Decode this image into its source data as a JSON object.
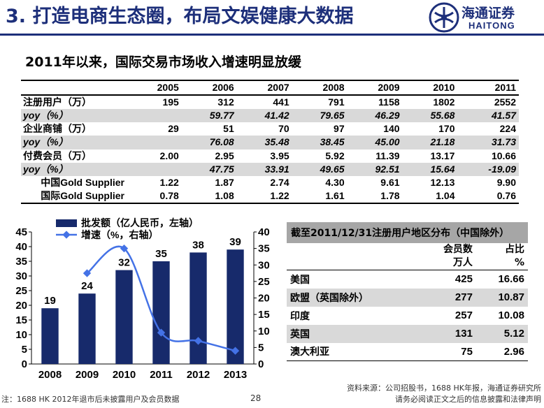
{
  "header": {
    "title": "3. 打造电商生态圈，布局文娱健康大数据",
    "logo_zh": "海通证券",
    "logo_en": "HAITONG",
    "colors": {
      "brand": "#1d2f7a",
      "bar": "#172a6b",
      "line": "#4472e6"
    }
  },
  "subtitle": "2011年以来，国际交易市场收入增速明显放缓",
  "table": {
    "years": [
      "2005",
      "2006",
      "2007",
      "2008",
      "2009",
      "2010",
      "2011"
    ],
    "rows": [
      {
        "label": "注册用户（万）",
        "values": [
          "195",
          "312",
          "441",
          "791",
          "1158",
          "1802",
          "2552"
        ],
        "kind": "main"
      },
      {
        "label": "yoy（%）",
        "values": [
          "",
          "59.77",
          "41.42",
          "79.65",
          "46.29",
          "55.68",
          "41.57"
        ],
        "kind": "yoy"
      },
      {
        "label": "企业商铺（万）",
        "values": [
          "29",
          "51",
          "70",
          "97",
          "140",
          "170",
          "224"
        ],
        "kind": "main"
      },
      {
        "label": "yoy（%）",
        "values": [
          "",
          "76.08",
          "35.48",
          "38.45",
          "45.00",
          "21.18",
          "31.73"
        ],
        "kind": "yoy"
      },
      {
        "label": "付费会员（万）",
        "values": [
          "2.00",
          "2.95",
          "3.95",
          "5.92",
          "11.39",
          "13.17",
          "10.66"
        ],
        "kind": "main"
      },
      {
        "label": "yoy（%）",
        "values": [
          "",
          "47.75",
          "33.91",
          "49.65",
          "92.51",
          "15.64",
          "-19.09"
        ],
        "kind": "yoy"
      },
      {
        "label": "中国Gold Supplier",
        "values": [
          "1.22",
          "1.87",
          "2.74",
          "4.30",
          "9.61",
          "12.13",
          "9.90"
        ],
        "kind": "sub"
      },
      {
        "label": "国际Gold Supplier",
        "values": [
          "0.78",
          "1.08",
          "1.22",
          "1.61",
          "1.78",
          "1.04",
          "0.76"
        ],
        "kind": "sub"
      }
    ]
  },
  "chart_data": {
    "type": "bar",
    "categories": [
      "2008",
      "2009",
      "2010",
      "2011",
      "2012",
      "2013"
    ],
    "series": [
      {
        "name": "批发额（亿人民币，左轴）",
        "type": "bar",
        "axis": "left",
        "values": [
          19,
          24,
          32,
          35,
          38,
          39
        ]
      },
      {
        "name": "增速（%，右轴）",
        "type": "line",
        "axis": "right",
        "values": [
          null,
          27.5,
          35,
          9.5,
          7,
          4
        ]
      }
    ],
    "left_axis": {
      "min": 0,
      "max": 45,
      "ticks": [
        "0",
        "5",
        "10",
        "15",
        "20",
        "25",
        "30",
        "35",
        "40",
        "45"
      ]
    },
    "right_axis": {
      "min": 0,
      "max": 40,
      "ticks": [
        "0",
        "5",
        "10",
        "15",
        "20",
        "25",
        "30",
        "35",
        "40"
      ]
    },
    "bar_labels": [
      "19",
      "24",
      "32",
      "35",
      "38",
      "39"
    ],
    "legend_position": "top"
  },
  "region_table": {
    "title": "截至2011/12/31注册用户地区分布（中国除外）",
    "col1_header": [
      "会员数",
      "万人"
    ],
    "col2_header": [
      "占比",
      "%"
    ],
    "rows": [
      {
        "region": "美国",
        "members": "425",
        "share": "16.66"
      },
      {
        "region": "欧盟（英国除外）",
        "members": "277",
        "share": "10.87"
      },
      {
        "region": "印度",
        "members": "257",
        "share": "10.08"
      },
      {
        "region": "英国",
        "members": "131",
        "share": "5.12"
      },
      {
        "region": "澳大利亚",
        "members": "75",
        "share": "2.96"
      }
    ]
  },
  "footer": {
    "note": "注：1688 HK 2012年退市后未披露用户及会员数据",
    "page": "28",
    "source_line1": "资料来源：公司招股书，1688 HK年报，海通证券研究所",
    "source_line2": "请务必阅读正文之后的信息披露和法律声明"
  }
}
